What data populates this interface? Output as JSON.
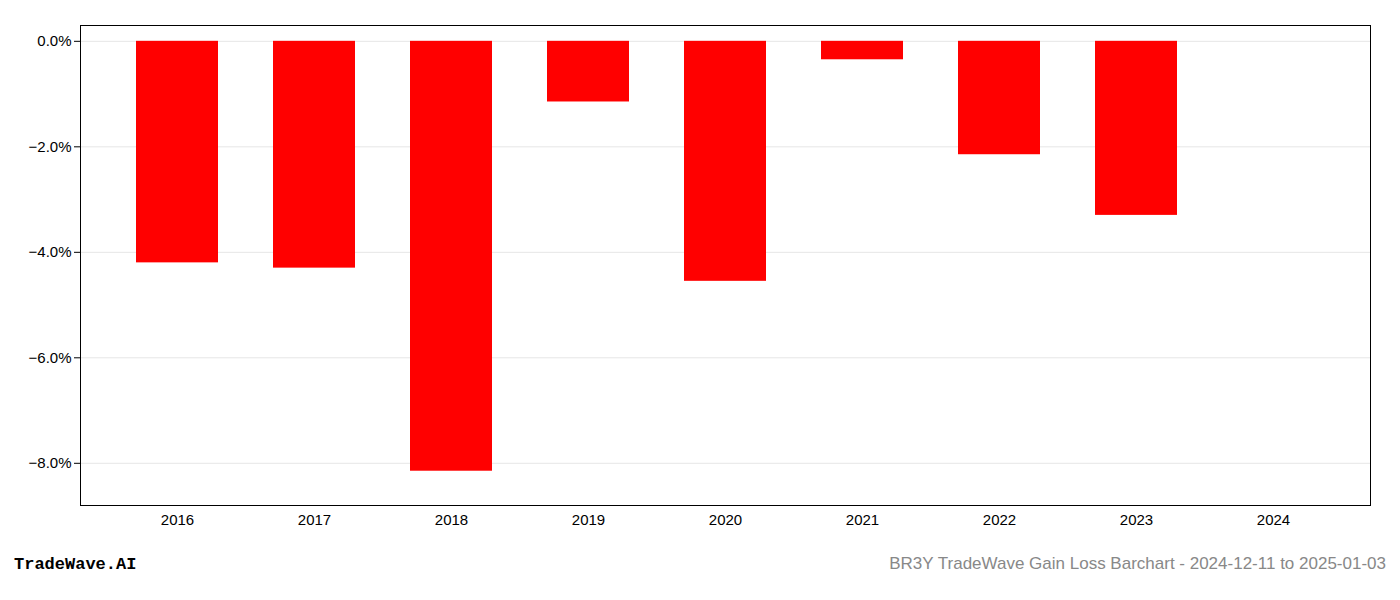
{
  "chart_data": {
    "type": "bar",
    "categories": [
      "2016",
      "2017",
      "2018",
      "2019",
      "2020",
      "2021",
      "2022",
      "2023",
      "2024"
    ],
    "values": [
      -4.2,
      -4.3,
      -8.15,
      -1.15,
      -4.55,
      -0.35,
      -2.15,
      -3.3,
      0.0
    ],
    "color": "#ff0000",
    "ylim": [
      -8.8,
      0.3
    ],
    "yticks": [
      {
        "value": 0.0,
        "label": "0.0%"
      },
      {
        "value": -2.0,
        "label": "−2.0%"
      },
      {
        "value": -4.0,
        "label": "−4.0%"
      },
      {
        "value": -6.0,
        "label": "−6.0%"
      },
      {
        "value": -8.0,
        "label": "−8.0%"
      }
    ],
    "grid": true,
    "annotations": [
      "TradeWave.AI",
      "BR3Y TradeWave Gain Loss Barchart - 2024-12-11 to 2025-01-03"
    ]
  }
}
